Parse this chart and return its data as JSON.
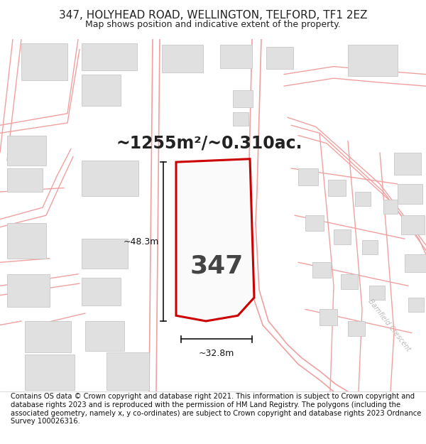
{
  "title": "347, HOLYHEAD ROAD, WELLINGTON, TELFORD, TF1 2EZ",
  "subtitle": "Map shows position and indicative extent of the property.",
  "footer": "Contains OS data © Crown copyright and database right 2021. This information is subject to Crown copyright and database rights 2023 and is reproduced with the permission of HM Land Registry. The polygons (including the associated geometry, namely x, y co-ordinates) are subject to Crown copyright and database rights 2023 Ordnance Survey 100026316.",
  "area_text": "~1255m²/~0.310ac.",
  "label_347": "347",
  "dim_width": "~32.8m",
  "dim_height": "~48.3m",
  "map_bg": "#ffffff",
  "road_line_color": "#f0a0a0",
  "building_fill": "#e0e0e0",
  "building_outline": "#c8c8c8",
  "highlight_fill": "#ffffff",
  "highlight_outline": "#cc0000",
  "text_color": "#222222",
  "dim_color": "#111111",
  "barnfield_color": "#bbbbbb",
  "title_fontsize": 11,
  "subtitle_fontsize": 9,
  "footer_fontsize": 7.2,
  "area_fontsize": 17,
  "label_fontsize": 26,
  "dim_fontsize": 9,
  "barnfield_fontsize": 7
}
